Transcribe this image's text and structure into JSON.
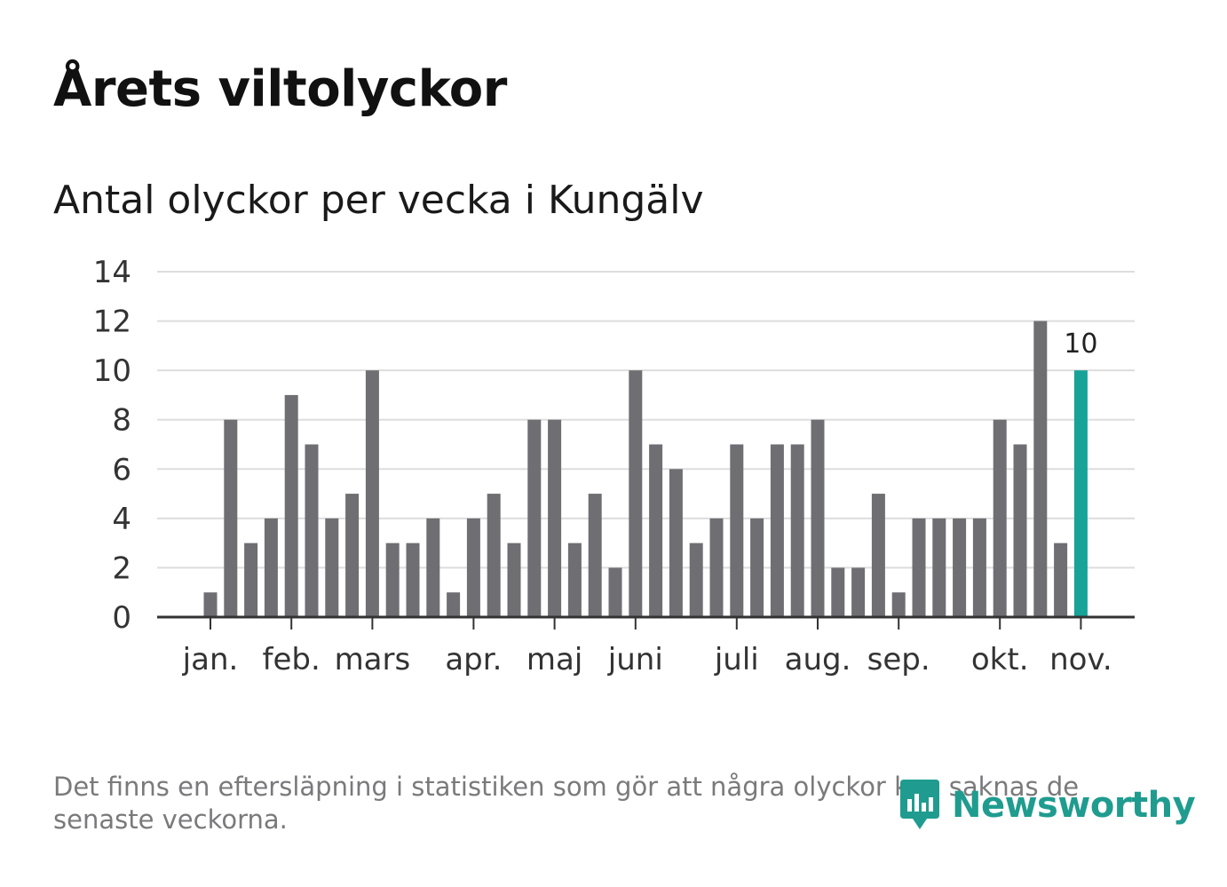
{
  "title": "Årets viltolyckor",
  "subtitle": "Antal olyckor per vecka i Kungälv",
  "footnote": "Det finns en eftersläpning i statistiken som gör att några olyckor kan saknas de senaste veckorna.",
  "brand": {
    "name": "Newsworthy",
    "icon": "newsworthy-logo-icon",
    "color": "#1f9c8f"
  },
  "chart_data": {
    "type": "bar",
    "title": "Antal olyckor per vecka i Kungälv",
    "xlabel": "",
    "ylabel": "",
    "ylim": [
      0,
      14
    ],
    "yticks": [
      0,
      2,
      4,
      6,
      8,
      10,
      12,
      14
    ],
    "grid": true,
    "values": [
      1,
      8,
      3,
      4,
      9,
      7,
      4,
      5,
      10,
      3,
      3,
      4,
      1,
      4,
      5,
      3,
      8,
      8,
      3,
      5,
      2,
      10,
      7,
      6,
      3,
      4,
      7,
      4,
      7,
      7,
      8,
      2,
      2,
      5,
      1,
      4,
      4,
      4,
      4,
      8,
      7,
      12,
      3,
      10
    ],
    "month_ticks": [
      {
        "label": "jan.",
        "week_index": 0
      },
      {
        "label": "feb.",
        "week_index": 4
      },
      {
        "label": "mars",
        "week_index": 8
      },
      {
        "label": "apr.",
        "week_index": 13
      },
      {
        "label": "maj",
        "week_index": 17
      },
      {
        "label": "juni",
        "week_index": 21
      },
      {
        "label": "juli",
        "week_index": 26
      },
      {
        "label": "aug.",
        "week_index": 30
      },
      {
        "label": "sep.",
        "week_index": 34
      },
      {
        "label": "okt.",
        "week_index": 39
      },
      {
        "label": "nov.",
        "week_index": 43
      }
    ],
    "highlight": {
      "week_index": 43,
      "value": 10,
      "label": "10"
    },
    "colors": {
      "bar": "#6f6e73",
      "highlight": "#17a398",
      "grid": "#dddddd",
      "axis": "#333333"
    }
  }
}
